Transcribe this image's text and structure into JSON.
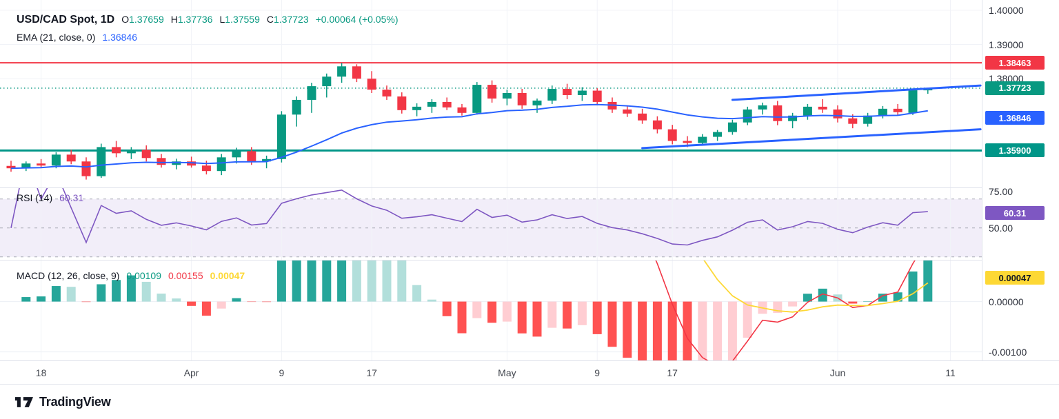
{
  "header": {
    "symbol": "USD/CAD Spot, 1D",
    "ohlc": {
      "o_label": "O",
      "o": "1.37659",
      "h_label": "H",
      "h": "1.37736",
      "l_label": "L",
      "l": "1.37559",
      "c_label": "C",
      "c": "1.37723",
      "change": "+0.00064 (+0.05%)"
    },
    "ema_label": "EMA (21, close, 0)",
    "ema_value": "1.36846"
  },
  "rsi_header": {
    "label": "RSI (14)",
    "value": "60.31"
  },
  "macd_header": {
    "label": "MACD (12, 26, close, 9)",
    "hist_value": "0.00109",
    "macd_value": "0.00155",
    "signal_value": "0.00047"
  },
  "price_axis": {
    "labels": [
      {
        "text": "1.40000",
        "price": 1.4
      },
      {
        "text": "1.39000",
        "price": 1.39
      },
      {
        "text": "1.38000",
        "price": 1.38
      }
    ],
    "badges": [
      {
        "text": "1.38463",
        "price": 1.38463,
        "bg": "#f23645",
        "fg": "#ffffff"
      },
      {
        "text": "1.37723",
        "price": 1.37723,
        "bg": "#089981",
        "fg": "#ffffff"
      },
      {
        "text": "1.36846",
        "price": 1.36846,
        "bg": "#2962ff",
        "fg": "#ffffff"
      },
      {
        "text": "1.35900",
        "price": 1.359,
        "bg": "#009688",
        "fg": "#ffffff"
      }
    ]
  },
  "rsi_axis": {
    "labels": [
      {
        "text": "75.00",
        "value": 75
      },
      {
        "text": "50.00",
        "value": 50
      }
    ],
    "badge": {
      "text": "60.31",
      "value": 60.31,
      "bg": "#7e57c2",
      "fg": "#ffffff"
    }
  },
  "macd_axis": {
    "labels": [
      {
        "text": "0.00000",
        "value": 0
      },
      {
        "text": "-0.00100",
        "value": -0.001
      }
    ],
    "badge": {
      "text": "0.00047",
      "value": 0.00047,
      "bg": "#fdd835",
      "fg": "#131722"
    }
  },
  "time_axis": {
    "ticks": [
      {
        "label": "18",
        "i": 2
      },
      {
        "label": "Apr",
        "i": 12
      },
      {
        "label": "9",
        "i": 18
      },
      {
        "label": "17",
        "i": 24
      },
      {
        "label": "May",
        "i": 33
      },
      {
        "label": "9",
        "i": 39
      },
      {
        "label": "17",
        "i": 44
      },
      {
        "label": "Jun",
        "i": 55
      },
      {
        "label": "11",
        "i": 62.5
      }
    ]
  },
  "footer": {
    "brand": "TradingView"
  },
  "chart_data": {
    "type": "candlestick",
    "symbol": "USD/CAD Spot",
    "interval": "1D",
    "main": {
      "price_range": [
        1.3482,
        1.403
      ],
      "up_color": "#089981",
      "down_color": "#f23645",
      "hlines": [
        {
          "price": 1.38463,
          "color": "#f23645",
          "width": 2,
          "style": "solid"
        },
        {
          "price": 1.359,
          "color": "#009688",
          "width": 3,
          "style": "solid"
        },
        {
          "price": 1.37723,
          "color": "#089981",
          "width": 1.5,
          "style": "dotted"
        }
      ],
      "trendlines": [
        {
          "i1": 48,
          "p1": 1.3738,
          "i2": 64.5,
          "p2": 1.378,
          "color": "#2962ff",
          "width": 3
        },
        {
          "i1": 42,
          "p1": 1.3597,
          "i2": 64.5,
          "p2": 1.3652,
          "color": "#2962ff",
          "width": 3
        }
      ],
      "ema": {
        "period": 21,
        "color": "#2962ff",
        "last": 1.36846
      }
    },
    "candles": [
      [
        1.3545,
        1.356,
        1.3528,
        1.3538
      ],
      [
        1.3538,
        1.3558,
        1.353,
        1.3552
      ],
      [
        1.3552,
        1.3565,
        1.354,
        1.3546
      ],
      [
        1.3546,
        1.3585,
        1.3538,
        1.3578
      ],
      [
        1.3578,
        1.3592,
        1.355,
        1.3558
      ],
      [
        1.3558,
        1.357,
        1.3505,
        1.3515
      ],
      [
        1.3515,
        1.361,
        1.351,
        1.36
      ],
      [
        1.36,
        1.3618,
        1.357,
        1.3582
      ],
      [
        1.3582,
        1.36,
        1.3565,
        1.3592
      ],
      [
        1.3592,
        1.3605,
        1.3558,
        1.3568
      ],
      [
        1.3568,
        1.358,
        1.354,
        1.3548
      ],
      [
        1.3548,
        1.3566,
        1.3535,
        1.3558
      ],
      [
        1.3558,
        1.3572,
        1.354,
        1.3546
      ],
      [
        1.3546,
        1.356,
        1.352,
        1.353
      ],
      [
        1.353,
        1.358,
        1.3518,
        1.357
      ],
      [
        1.357,
        1.3598,
        1.3552,
        1.3588
      ],
      [
        1.3588,
        1.36,
        1.3548,
        1.3558
      ],
      [
        1.3558,
        1.3575,
        1.3538,
        1.3565
      ],
      [
        1.3565,
        1.3705,
        1.3555,
        1.3695
      ],
      [
        1.3695,
        1.3748,
        1.366,
        1.3738
      ],
      [
        1.3738,
        1.3788,
        1.37,
        1.3778
      ],
      [
        1.3778,
        1.3815,
        1.3745,
        1.3806
      ],
      [
        1.3806,
        1.3846,
        1.3788,
        1.3836
      ],
      [
        1.3836,
        1.3842,
        1.379,
        1.38
      ],
      [
        1.38,
        1.3822,
        1.3758,
        1.3768
      ],
      [
        1.3768,
        1.378,
        1.3738,
        1.3748
      ],
      [
        1.3748,
        1.376,
        1.3698,
        1.3708
      ],
      [
        1.3708,
        1.3728,
        1.369,
        1.3718
      ],
      [
        1.3718,
        1.374,
        1.37,
        1.3732
      ],
      [
        1.3732,
        1.3745,
        1.3708,
        1.3716
      ],
      [
        1.3716,
        1.3726,
        1.3692,
        1.37
      ],
      [
        1.37,
        1.379,
        1.3695,
        1.3782
      ],
      [
        1.3782,
        1.3795,
        1.373,
        1.3742
      ],
      [
        1.3742,
        1.3768,
        1.3722,
        1.3758
      ],
      [
        1.3758,
        1.377,
        1.3712,
        1.3722
      ],
      [
        1.3722,
        1.3742,
        1.37,
        1.3736
      ],
      [
        1.3736,
        1.378,
        1.3726,
        1.377
      ],
      [
        1.377,
        1.3785,
        1.374,
        1.3752
      ],
      [
        1.3752,
        1.3775,
        1.3735,
        1.3765
      ],
      [
        1.3765,
        1.3772,
        1.3722,
        1.3732
      ],
      [
        1.3732,
        1.3745,
        1.37,
        1.371
      ],
      [
        1.371,
        1.3722,
        1.3688,
        1.3698
      ],
      [
        1.3698,
        1.3712,
        1.3668,
        1.3678
      ],
      [
        1.3678,
        1.369,
        1.364,
        1.3652
      ],
      [
        1.3652,
        1.3665,
        1.3608,
        1.3618
      ],
      [
        1.3618,
        1.3632,
        1.36,
        1.3612
      ],
      [
        1.3612,
        1.3638,
        1.3605,
        1.363
      ],
      [
        1.363,
        1.365,
        1.3618,
        1.3644
      ],
      [
        1.3644,
        1.368,
        1.3636,
        1.3672
      ],
      [
        1.3672,
        1.3718,
        1.3664,
        1.371
      ],
      [
        1.371,
        1.373,
        1.3695,
        1.3722
      ],
      [
        1.3722,
        1.3735,
        1.3664,
        1.3676
      ],
      [
        1.3676,
        1.37,
        1.3655,
        1.3692
      ],
      [
        1.3692,
        1.3726,
        1.368,
        1.3718
      ],
      [
        1.3718,
        1.374,
        1.37,
        1.371
      ],
      [
        1.371,
        1.3722,
        1.3672,
        1.3684
      ],
      [
        1.3684,
        1.3696,
        1.3655,
        1.3668
      ],
      [
        1.3668,
        1.37,
        1.366,
        1.3692
      ],
      [
        1.3692,
        1.372,
        1.3684,
        1.3712
      ],
      [
        1.3712,
        1.3726,
        1.3692,
        1.3702
      ],
      [
        1.37,
        1.377,
        1.3694,
        1.3766
      ],
      [
        1.37659,
        1.37736,
        1.37559,
        1.37723
      ]
    ],
    "rsi": {
      "period": 14,
      "range": [
        28,
        78
      ],
      "levels": [
        70,
        50,
        30
      ],
      "band": [
        70,
        30
      ],
      "color": "#7e57c2",
      "band_color": "rgba(126,87,194,0.10)",
      "last": 60.31
    },
    "macd": {
      "fast": 12,
      "slow": 26,
      "source": "close",
      "smoothing": 9,
      "range": [
        -0.00117,
        0.00083
      ],
      "colors": {
        "grow_above": "#26a69a",
        "fall_above": "#b2dfdb",
        "fall_below": "#ff5252",
        "grow_below": "#ffcdd2",
        "macd": "#f23645",
        "signal": "#fdd835"
      },
      "last": {
        "hist": 0.00109,
        "macd": 0.00155,
        "signal": 0.00047
      }
    }
  }
}
